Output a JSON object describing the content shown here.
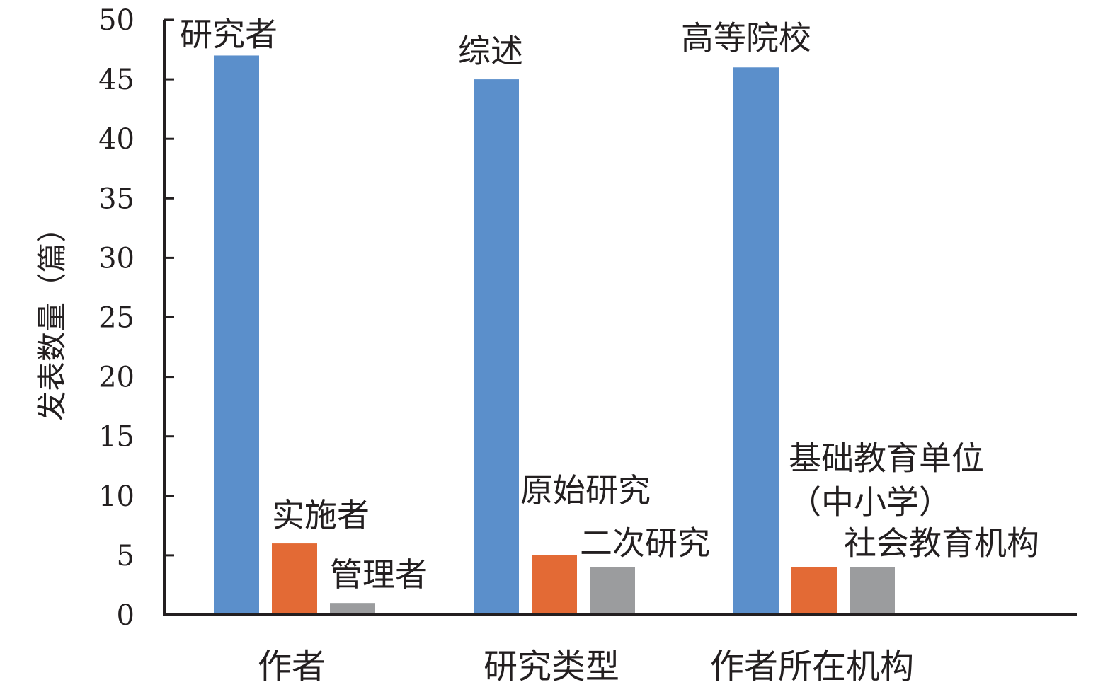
{
  "colors": {
    "series_1": "#5b8fcb",
    "series_2": "#e36a35",
    "series_3": "#9b9c9e",
    "axis": "#231f20"
  },
  "chart_data": {
    "type": "bar",
    "ylabel": "发表数量（篇）",
    "ylim": [
      0,
      50
    ],
    "yticks": [
      0,
      5,
      10,
      15,
      20,
      25,
      30,
      35,
      40,
      45,
      50
    ],
    "grid": false,
    "categories": [
      "作者",
      "研究类型",
      "作者所在机构"
    ],
    "bars": [
      [
        {
          "label": [
            "研究者"
          ],
          "value": 47
        },
        {
          "label": [
            "实施者"
          ],
          "value": 6
        },
        {
          "label": [
            "管理者"
          ],
          "value": 1
        }
      ],
      [
        {
          "label": [
            "综述"
          ],
          "value": 45
        },
        {
          "label": [
            "原始研究"
          ],
          "value": 5
        },
        {
          "label": [
            "二次研究"
          ],
          "value": 4
        }
      ],
      [
        {
          "label": [
            "高等院校"
          ],
          "value": 46
        },
        {
          "label": [
            "基础教育单位",
            "（中小学）"
          ],
          "value": 4
        },
        {
          "label": [
            "社会教育机构"
          ],
          "value": 4
        }
      ]
    ]
  }
}
